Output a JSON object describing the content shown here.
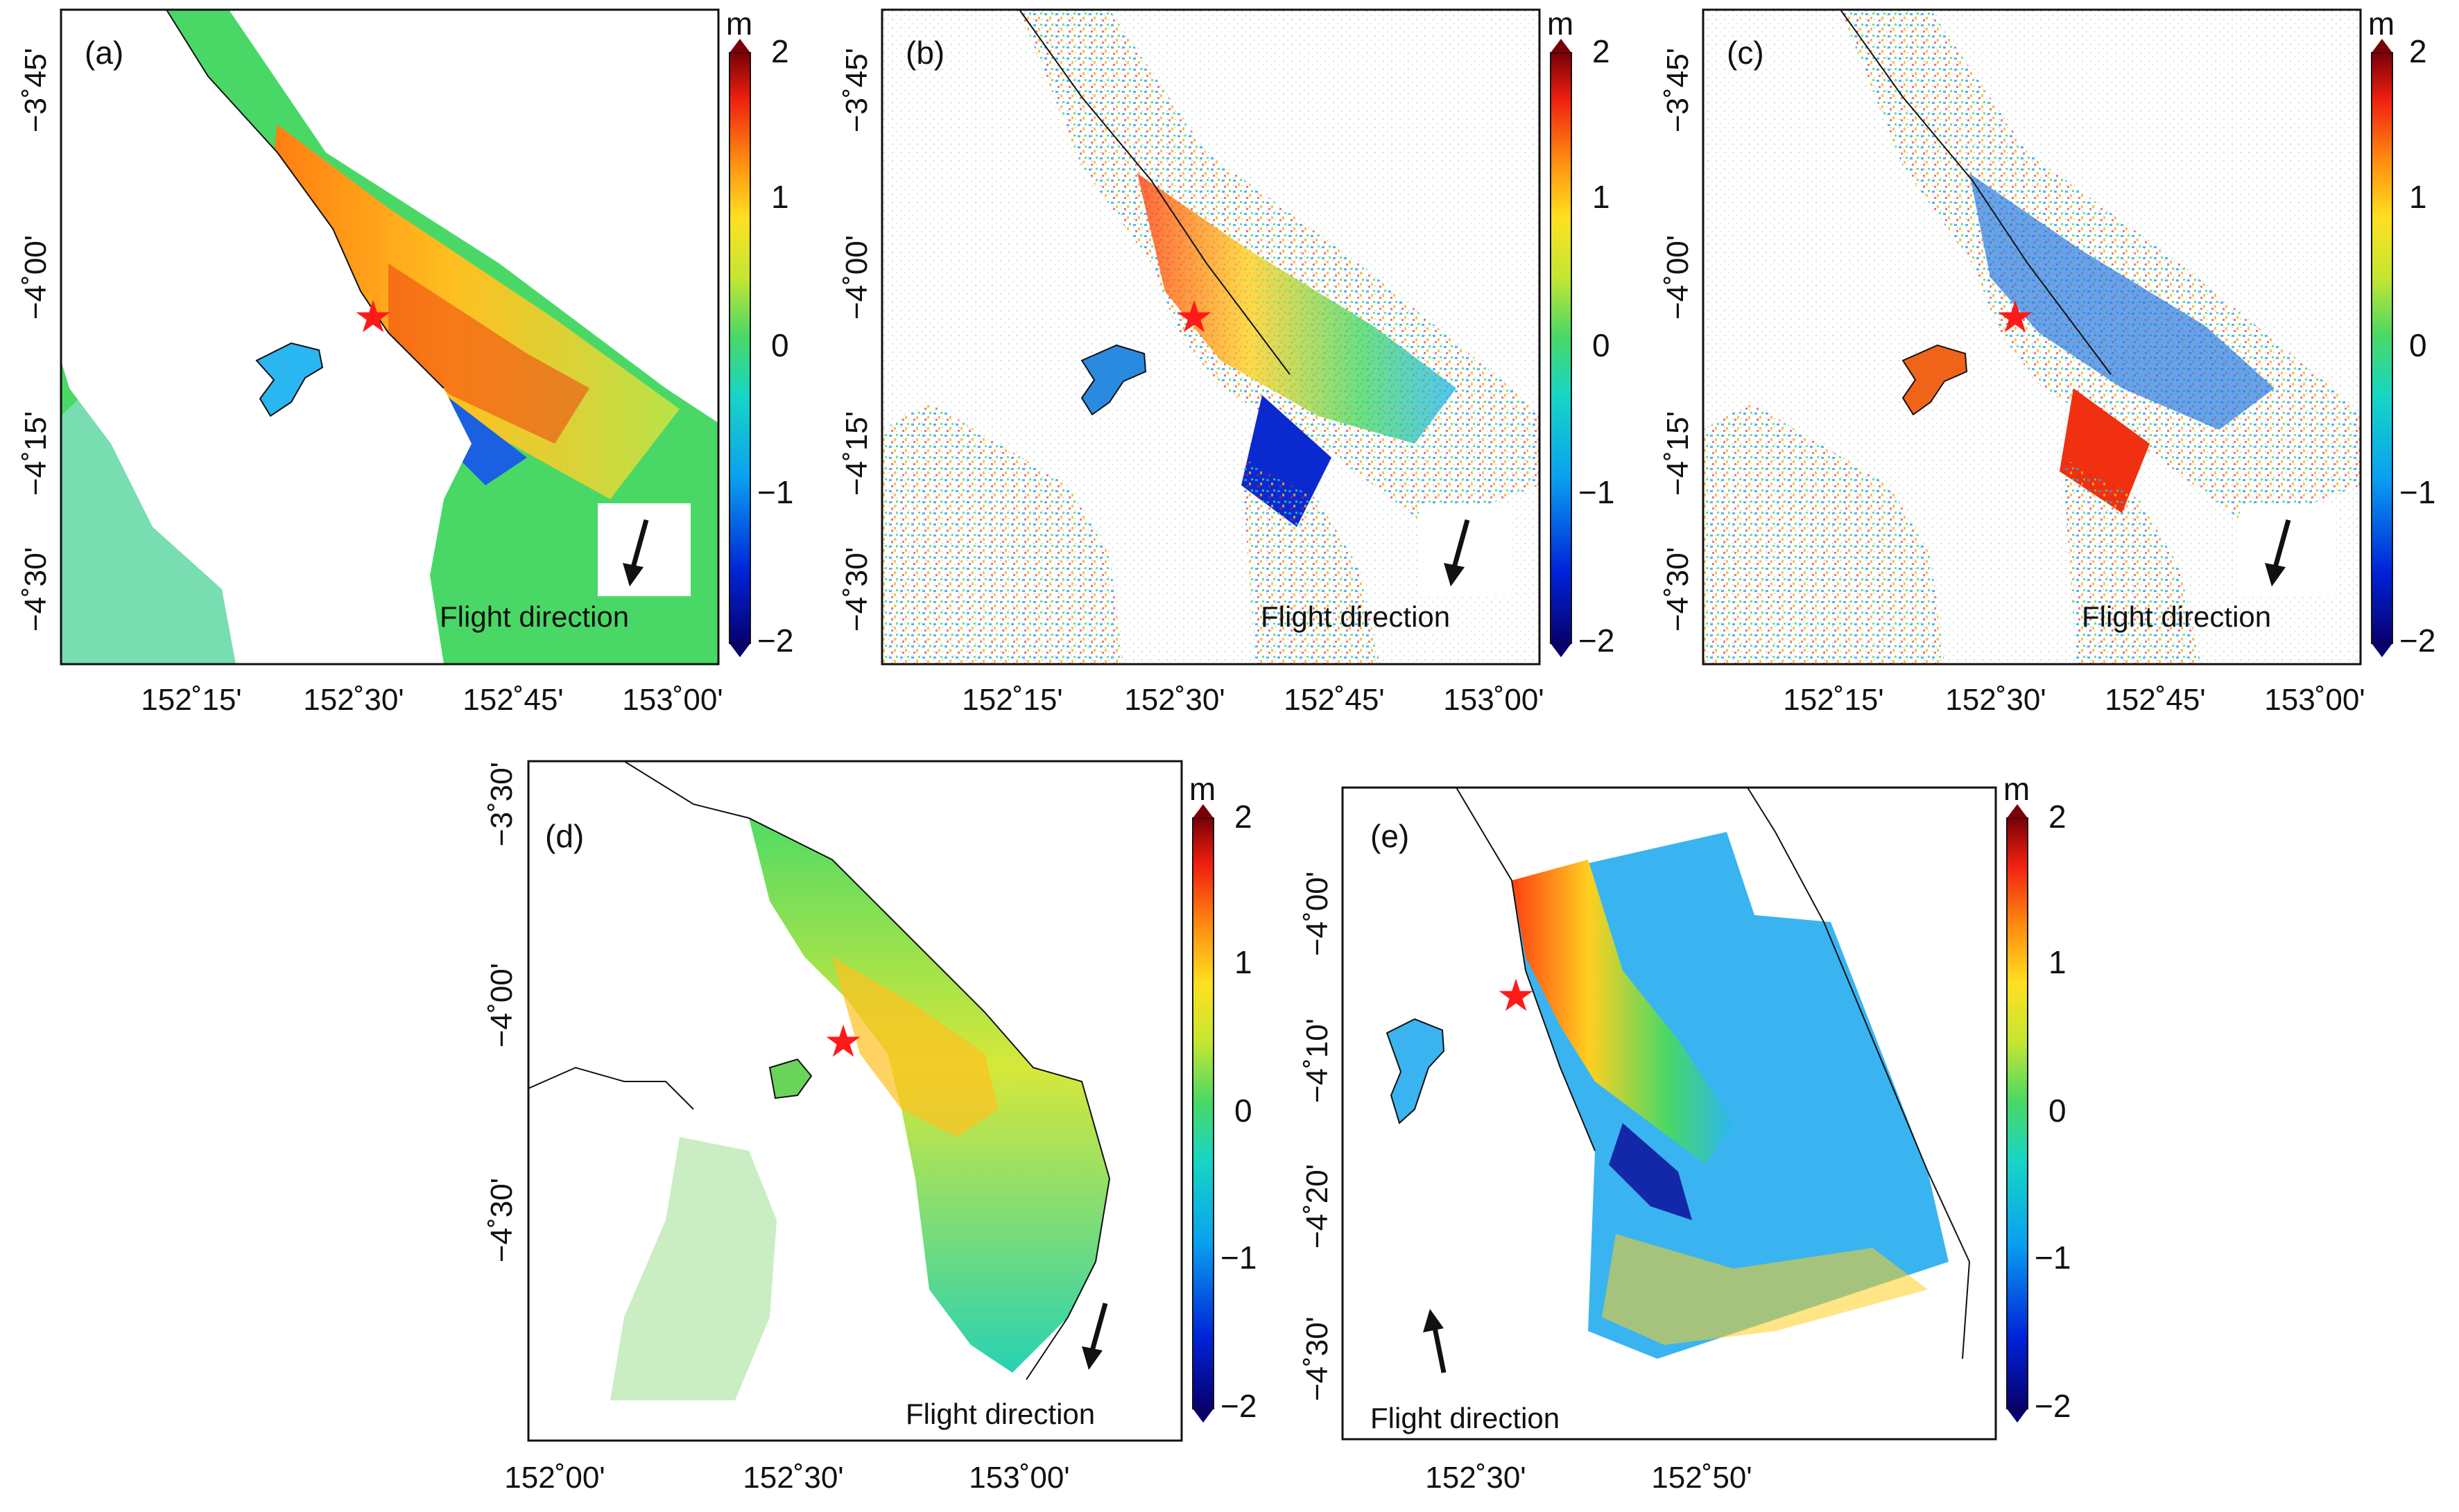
{
  "units_label": "m",
  "colorbar": {
    "ticks": [
      "2",
      "1",
      "0",
      "−1",
      "−2"
    ],
    "range": [
      -2,
      2
    ],
    "colors": [
      "#08006e",
      "#0022d8",
      "#0aa0f0",
      "#17d6c4",
      "#49d866",
      "#c4e632",
      "#ffe020",
      "#ff8a10",
      "#f02010",
      "#7a0008"
    ]
  },
  "flight_label": "Flight direction",
  "epicenter_color": "#ff1a1a",
  "panels": {
    "a": {
      "label": "(a)",
      "lat_ticks": [
        "−3˚45'",
        "−4˚00'",
        "−4˚15'",
        "−4˚30'"
      ],
      "lon_ticks": [
        "152˚15'",
        "152˚30'",
        "152˚45'",
        "153˚00'"
      ],
      "flight_arrow": "descending"
    },
    "b": {
      "label": "(b)",
      "lat_ticks": [
        "−3˚45'",
        "−4˚00'",
        "−4˚15'",
        "−4˚30'"
      ],
      "lon_ticks": [
        "152˚15'",
        "152˚30'",
        "152˚45'",
        "153˚00'"
      ],
      "flight_arrow": "descending"
    },
    "c": {
      "label": "(c)",
      "lat_ticks": [
        "−3˚45'",
        "−4˚00'",
        "−4˚15'",
        "−4˚30'"
      ],
      "lon_ticks": [
        "152˚15'",
        "152˚30'",
        "152˚45'",
        "153˚00'"
      ],
      "flight_arrow": "descending"
    },
    "d": {
      "label": "(d)",
      "lat_ticks": [
        "−3˚30'",
        "−4˚00'",
        "−4˚30'"
      ],
      "lon_ticks": [
        "152˚00'",
        "152˚30'",
        "153˚00'"
      ],
      "flight_arrow": "descending"
    },
    "e": {
      "label": "(e)",
      "lat_ticks": [
        "−4˚00'",
        "−4˚10'",
        "−4˚20'",
        "−4˚30'"
      ],
      "lon_ticks": [
        "152˚30'",
        "152˚50'"
      ],
      "flight_arrow": "ascending"
    }
  }
}
